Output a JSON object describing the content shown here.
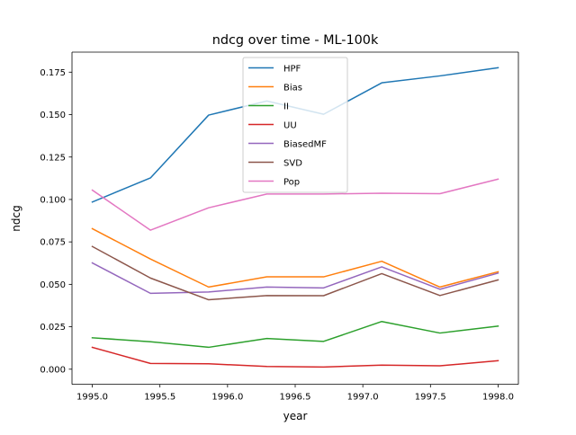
{
  "chart_data": {
    "type": "line",
    "title": "ndcg over time - ML-100k",
    "xlabel": "year",
    "ylabel": "ndcg",
    "xlim": [
      1994.85,
      1998.15
    ],
    "ylim": [
      -0.0089,
      0.1868
    ],
    "x": [
      1995.0,
      1995.43,
      1995.86,
      1996.29,
      1996.71,
      1997.14,
      1997.57,
      1998.0
    ],
    "x_ticks": [
      1995.0,
      1995.5,
      1996.0,
      1996.5,
      1997.0,
      1997.5,
      1998.0
    ],
    "x_tick_labels": [
      "1995.0",
      "1995.5",
      "1996.0",
      "1996.5",
      "1997.0",
      "1997.5",
      "1998.0"
    ],
    "y_ticks": [
      0.0,
      0.025,
      0.05,
      0.075,
      0.1,
      0.125,
      0.15,
      0.175
    ],
    "y_tick_labels": [
      "0.000",
      "0.025",
      "0.050",
      "0.075",
      "0.100",
      "0.125",
      "0.150",
      "0.175"
    ],
    "grid": false,
    "legend_position": "top-center",
    "series": [
      {
        "name": "HPF",
        "color": "#1f77b4",
        "values": [
          0.0985,
          0.1127,
          0.1497,
          0.158,
          0.1502,
          0.1687,
          0.1728,
          0.1776
        ]
      },
      {
        "name": "Bias",
        "color": "#ff7f0e",
        "values": [
          0.0828,
          0.0649,
          0.0484,
          0.0544,
          0.0544,
          0.0636,
          0.0484,
          0.0574
        ]
      },
      {
        "name": "II",
        "color": "#2ca02c",
        "values": [
          0.0185,
          0.0162,
          0.0129,
          0.0181,
          0.0164,
          0.0281,
          0.0213,
          0.0254
        ]
      },
      {
        "name": "UU",
        "color": "#d62728",
        "values": [
          0.0129,
          0.0034,
          0.0032,
          0.0016,
          0.0013,
          0.0024,
          0.002,
          0.005
        ]
      },
      {
        "name": "BiasedMF",
        "color": "#9467bd",
        "values": [
          0.0626,
          0.0447,
          0.0455,
          0.0484,
          0.0479,
          0.0603,
          0.0471,
          0.0566
        ]
      },
      {
        "name": "SVD",
        "color": "#8c564b",
        "values": [
          0.0723,
          0.0537,
          0.0409,
          0.0434,
          0.0433,
          0.0563,
          0.0434,
          0.0526
        ]
      },
      {
        "name": "Pop",
        "color": "#e377c2",
        "values": [
          0.1055,
          0.0819,
          0.0951,
          0.1032,
          0.1032,
          0.1037,
          0.1034,
          0.112
        ]
      }
    ]
  }
}
